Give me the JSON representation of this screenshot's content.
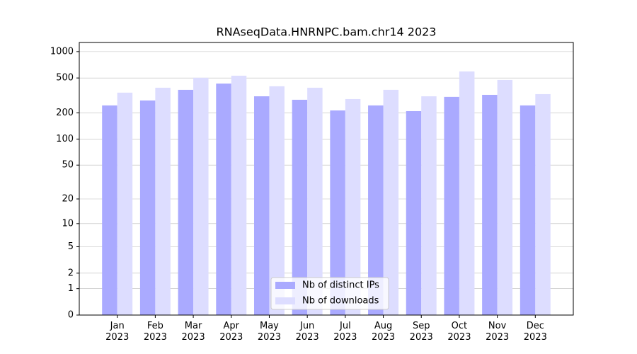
{
  "chart_data": {
    "type": "bar",
    "title": "RNAseqData.HNRNPC.bam.chr14 2023",
    "categories": [
      "Jan\n2023",
      "Feb\n2023",
      "Mar\n2023",
      "Apr\n2023",
      "May\n2023",
      "Jun\n2023",
      "Jul\n2023",
      "Aug\n2023",
      "Sep\n2023",
      "Oct\n2023",
      "Nov\n2023",
      "Dec\n2023"
    ],
    "series": [
      {
        "name": "Nb of distinct IPs",
        "color": "#aaaaff",
        "values": [
          243,
          277,
          366,
          432,
          309,
          282,
          213,
          243,
          209,
          304,
          321,
          243
        ]
      },
      {
        "name": "Nb of downloads",
        "color": "#ddddff",
        "values": [
          340,
          387,
          503,
          531,
          402,
          387,
          287,
          366,
          309,
          594,
          475,
          327
        ]
      }
    ],
    "yscale": "log1p",
    "ylim": [
      0,
      1270
    ],
    "yticks": [
      0,
      1,
      2,
      5,
      10,
      20,
      50,
      100,
      200,
      500,
      1000
    ],
    "grid": true,
    "legend": "lower center"
  }
}
